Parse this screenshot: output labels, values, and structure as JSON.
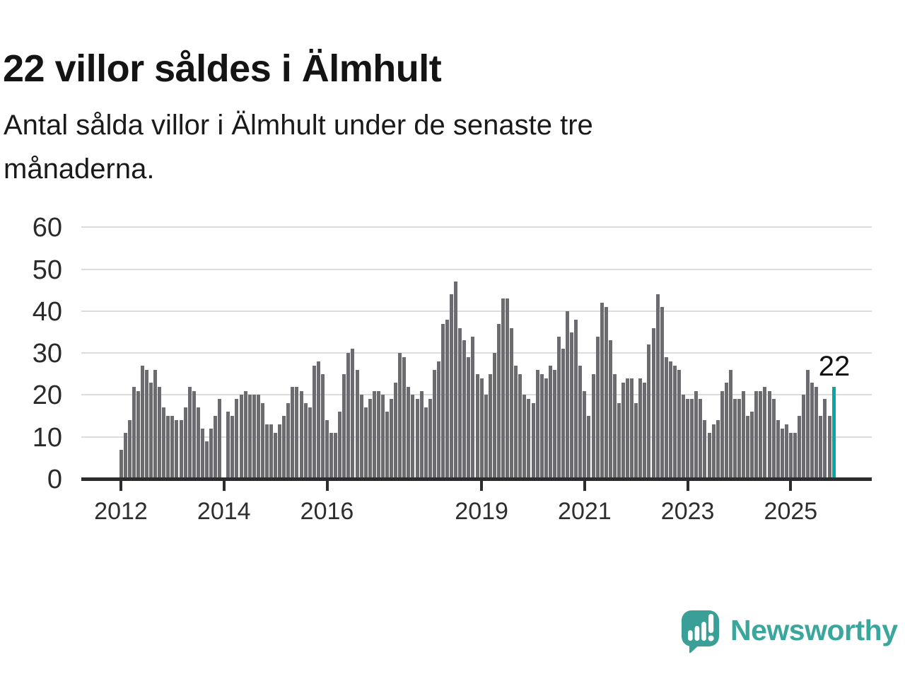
{
  "title": "22 villor såldes i Älmhult",
  "subtitle": {
    "lines": [
      "Antal sålda villor i Älmhult under de senaste tre",
      "månaderna."
    ]
  },
  "chart_data": {
    "type": "bar",
    "title": "22 villor såldes i Älmhult",
    "ylabel": "",
    "xlabel": "",
    "x_start": "2012-01",
    "x_interval": "monthly",
    "ylim": [
      0,
      60
    ],
    "y_ticks": [
      0,
      10,
      20,
      30,
      40,
      50,
      60
    ],
    "grid": "horizontal",
    "x_tick_labels": [
      {
        "label": "2012",
        "month_index": 0
      },
      {
        "label": "2014",
        "month_index": 24
      },
      {
        "label": "2016",
        "month_index": 48
      },
      {
        "label": "2019",
        "month_index": 84
      },
      {
        "label": "2021",
        "month_index": 108
      },
      {
        "label": "2023",
        "month_index": 132
      },
      {
        "label": "2025",
        "month_index": 156
      }
    ],
    "values": [
      7,
      11,
      14,
      22,
      21,
      27,
      26,
      23,
      26,
      22,
      17,
      15,
      15,
      14,
      14,
      17,
      22,
      21,
      17,
      12,
      9,
      12,
      15,
      19,
      null,
      16,
      15,
      19,
      20,
      21,
      20,
      20,
      20,
      18,
      13,
      13,
      11,
      13,
      15,
      18,
      22,
      22,
      21,
      18,
      17,
      27,
      28,
      25,
      14,
      11,
      11,
      16,
      25,
      30,
      31,
      26,
      20,
      17,
      19,
      21,
      21,
      20,
      16,
      19,
      23,
      30,
      29,
      22,
      20,
      19,
      21,
      17,
      19,
      26,
      28,
      37,
      38,
      44,
      47,
      36,
      33,
      29,
      34,
      25,
      24,
      20,
      25,
      30,
      37,
      43,
      43,
      36,
      27,
      25,
      20,
      19,
      18,
      26,
      25,
      24,
      27,
      26,
      34,
      31,
      40,
      35,
      38,
      27,
      21,
      15,
      25,
      34,
      42,
      41,
      33,
      25,
      18,
      23,
      24,
      24,
      18,
      24,
      23,
      32,
      36,
      44,
      41,
      29,
      28,
      27,
      26,
      20,
      19,
      19,
      21,
      19,
      14,
      11,
      13,
      14,
      21,
      23,
      26,
      19,
      19,
      21,
      15,
      16,
      21,
      21,
      22,
      21,
      19,
      14,
      12,
      13,
      11,
      11,
      15,
      20,
      26,
      23,
      22,
      15,
      19,
      15,
      22
    ],
    "highlight": {
      "index": 166,
      "value": 22
    },
    "annotation": {
      "text": "22"
    },
    "bar_color": "#6b6b70",
    "highlight_color": "#0aa6a3",
    "gridline_color": "#dcdcdc",
    "axis_color": "#2d2d2d"
  },
  "logo": {
    "text": "Newsworthy",
    "icon": "newsworthy-speech-bubble-chart-icon",
    "color": "#3ba79c"
  }
}
